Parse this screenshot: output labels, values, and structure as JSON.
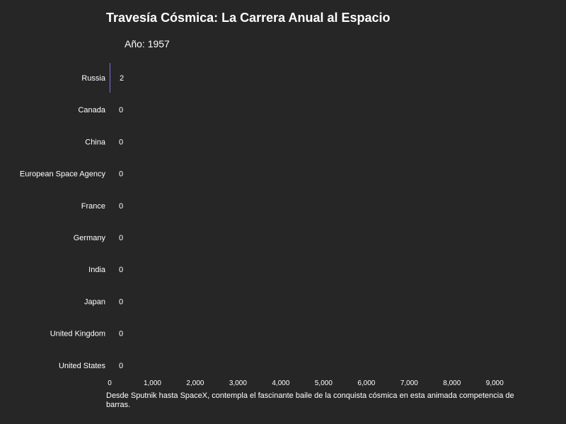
{
  "chart_data": {
    "type": "bar",
    "orientation": "horizontal",
    "title": "Travesía Cósmica: La Carrera Anual al Espacio",
    "subtitle": "Año: 1957",
    "caption": "Desde Sputnik hasta SpaceX, contempla el fascinante baile de la conquista cósmica en esta animada competencia de barras.",
    "categories": [
      "Russia",
      "Canada",
      "China",
      "European Space Agency",
      "France",
      "Germany",
      "India",
      "Japan",
      "United Kingdom",
      "United States"
    ],
    "values": [
      2,
      0,
      0,
      0,
      0,
      0,
      0,
      0,
      0,
      0
    ],
    "value_labels": [
      "2",
      "0",
      "0",
      "0",
      "0",
      "0",
      "0",
      "0",
      "0",
      "0"
    ],
    "x_ticks": [
      0,
      1000,
      2000,
      3000,
      4000,
      5000,
      6000,
      7000,
      8000,
      9000
    ],
    "x_tick_labels": [
      "0",
      "1,000",
      "2,000",
      "3,000",
      "4,000",
      "5,000",
      "6,000",
      "7,000",
      "8,000",
      "9,000"
    ],
    "xlim": [
      0,
      10500
    ],
    "grid": false,
    "bar_color": "#7b6fd6",
    "background_color": "#262626",
    "text_color": "#ffffff"
  }
}
